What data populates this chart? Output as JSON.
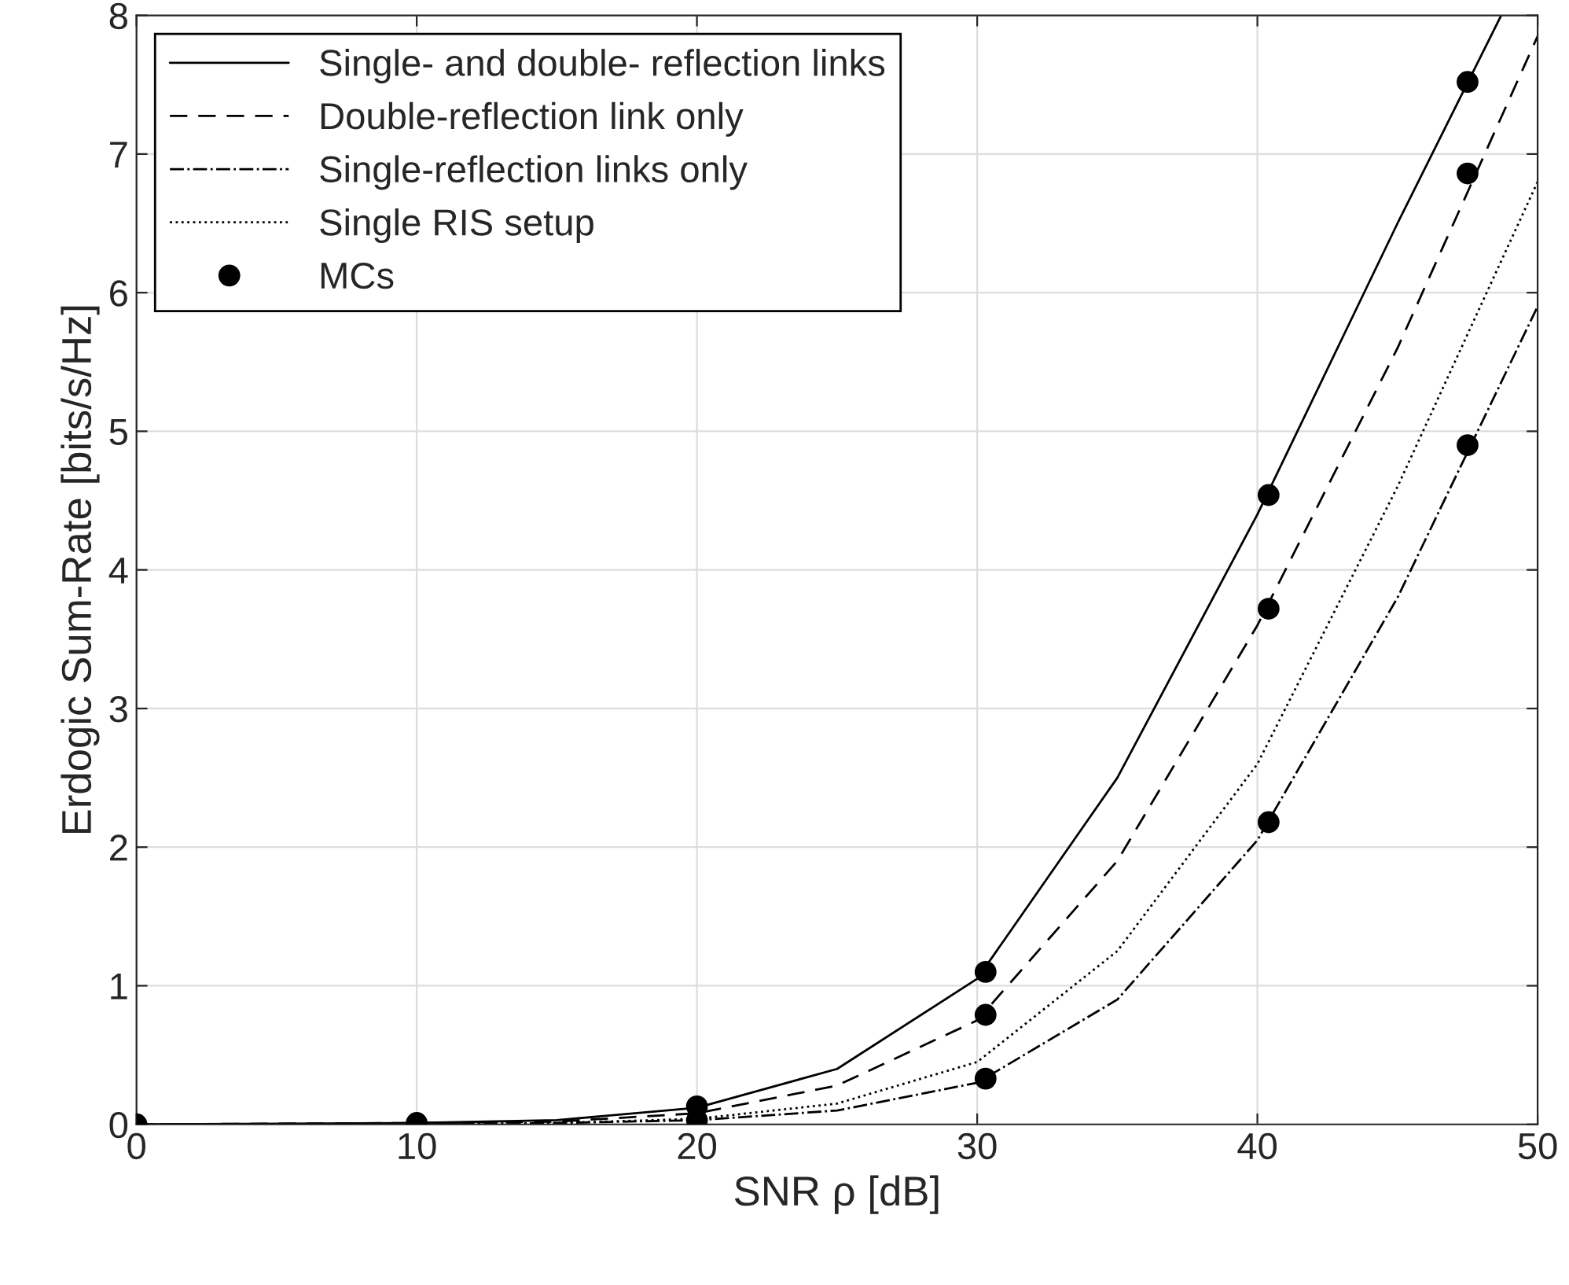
{
  "chart_data": {
    "type": "line",
    "xlabel": "SNR ρ [dB]",
    "ylabel": "Erdogic Sum-Rate [bits/s/Hz]",
    "xlim": [
      0,
      50
    ],
    "ylim": [
      0,
      8
    ],
    "xticks": [
      0,
      10,
      20,
      30,
      40,
      50
    ],
    "yticks": [
      0,
      1,
      2,
      3,
      4,
      5,
      6,
      7,
      8
    ],
    "grid": true,
    "legend": "top left",
    "series": [
      {
        "name": "Single- and double- reflection links",
        "color": "#000000",
        "line_style": "solid",
        "x": [
          0,
          10,
          15,
          20,
          25,
          30,
          35,
          40,
          45,
          48.7
        ],
        "values": [
          0,
          0.01,
          0.03,
          0.12,
          0.4,
          1.05,
          2.5,
          4.4,
          6.5,
          8
        ]
      },
      {
        "name": "Double-reflection link only",
        "color": "#000000",
        "line_style": "dashed",
        "x": [
          0,
          10,
          15,
          20,
          25,
          30,
          35,
          40,
          45,
          50
        ],
        "values": [
          0,
          0.01,
          0.02,
          0.08,
          0.28,
          0.75,
          1.9,
          3.6,
          5.6,
          7.85
        ]
      },
      {
        "name": "Single-reflection links only",
        "color": "#000000",
        "line_style": "dashdot",
        "x": [
          0,
          10,
          15,
          20,
          25,
          30,
          35,
          40,
          45,
          50
        ],
        "values": [
          0,
          0,
          0.01,
          0.03,
          0.1,
          0.3,
          0.9,
          2.05,
          3.8,
          5.9
        ]
      },
      {
        "name": "Single RIS setup",
        "color": "#000000",
        "line_style": "dotted",
        "x": [
          0,
          10,
          15,
          20,
          25,
          30,
          35,
          40,
          45,
          50
        ],
        "values": [
          0,
          0,
          0.01,
          0.04,
          0.15,
          0.45,
          1.25,
          2.6,
          4.6,
          6.8
        ]
      },
      {
        "name": "MCs",
        "type": "scatter",
        "marker": "circle",
        "color": "#000000",
        "x": [
          0,
          10,
          20,
          20,
          30.3,
          30.3,
          30.3,
          40.4,
          40.4,
          40.4,
          47.5,
          47.5,
          47.5
        ],
        "values": [
          0,
          0.01,
          0.13,
          0.03,
          1.1,
          0.79,
          0.33,
          4.54,
          3.72,
          2.18,
          7.52,
          6.86,
          4.9
        ]
      }
    ]
  }
}
